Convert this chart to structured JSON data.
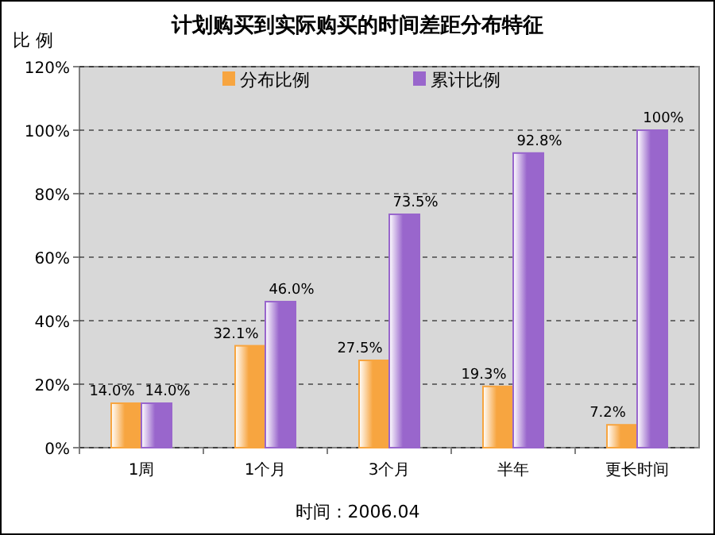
{
  "chart_data": {
    "type": "bar",
    "title": "计划购买到实际购买的时间差距分布特征",
    "ylabel": "比 例",
    "categories": [
      "1周",
      "1个月",
      "3个月",
      "半年",
      "更长时间"
    ],
    "series": [
      {
        "name": "分布比例",
        "color": "#f7a540",
        "values": [
          14.0,
          32.1,
          27.5,
          19.3,
          7.2
        ],
        "value_labels": [
          "14.0%",
          "32.1%",
          "27.5%",
          "19.3%",
          "7.2%"
        ]
      },
      {
        "name": "累计比例",
        "color": "#9966cc",
        "values": [
          14.0,
          46.0,
          73.5,
          92.8,
          100
        ],
        "value_labels": [
          "14.0%",
          "46.0%",
          "73.5%",
          "92.8%",
          "100%"
        ]
      }
    ],
    "ylim": [
      0,
      120
    ],
    "yticks": [
      {
        "value": 0,
        "label": "0%"
      },
      {
        "value": 20,
        "label": "20%"
      },
      {
        "value": 40,
        "label": "40%"
      },
      {
        "value": 60,
        "label": "60%"
      },
      {
        "value": 80,
        "label": "80%"
      },
      {
        "value": 100,
        "label": "100%"
      },
      {
        "value": 120,
        "label": "120%"
      }
    ],
    "grid": "y",
    "legend": "top",
    "annotations": [
      "时间：2006.04"
    ]
  }
}
